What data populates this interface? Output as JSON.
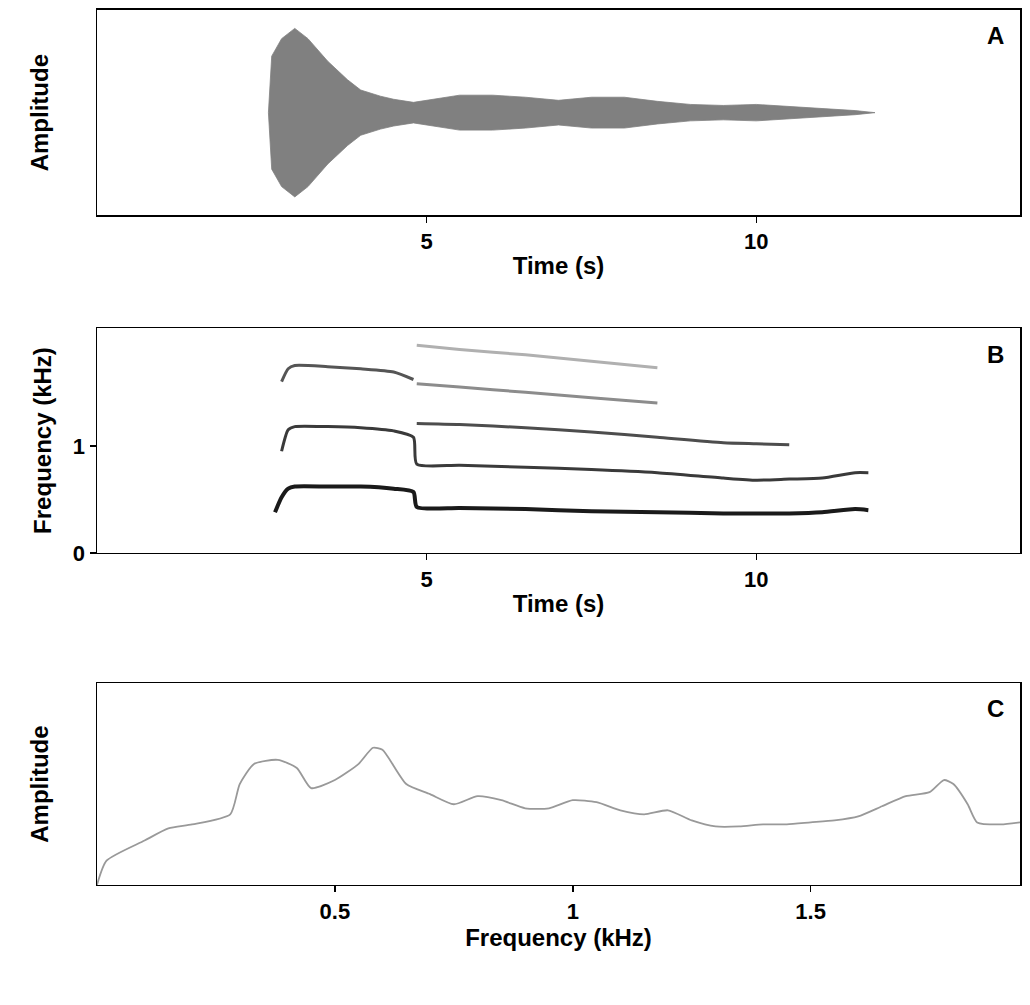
{
  "chart_data": [
    {
      "type": "area",
      "x_label": "Time (s)",
      "y_label": "Amplitude",
      "annotations": [
        "A"
      ],
      "color": "#808080",
      "x": [
        2.6,
        2.65,
        2.8,
        3.0,
        3.2,
        3.5,
        3.8,
        4.0,
        4.3,
        4.5,
        4.8,
        5.0,
        5.5,
        6.0,
        6.5,
        7.0,
        7.5,
        8.0,
        8.5,
        9.0,
        9.5,
        10.0,
        10.5,
        11.0,
        11.5,
        11.8
      ],
      "series": [
        {
          "values": [
            0,
            0.55,
            0.72,
            0.82,
            0.72,
            0.5,
            0.32,
            0.22,
            0.16,
            0.13,
            0.1,
            0.12,
            0.17,
            0.17,
            0.15,
            0.12,
            0.15,
            0.15,
            0.11,
            0.08,
            0.07,
            0.08,
            0.06,
            0.04,
            0.02,
            0
          ]
        },
        {
          "values": [
            0,
            -0.55,
            -0.72,
            -0.82,
            -0.72,
            -0.5,
            -0.32,
            -0.22,
            -0.16,
            -0.13,
            -0.1,
            -0.12,
            -0.17,
            -0.17,
            -0.15,
            -0.12,
            -0.15,
            -0.15,
            -0.11,
            -0.08,
            -0.07,
            -0.08,
            -0.06,
            -0.04,
            -0.02,
            0
          ]
        }
      ],
      "xlim": [
        0,
        14
      ],
      "xticks": [
        5,
        10
      ],
      "ylim": [
        -1,
        1
      ],
      "tick_labels": "x",
      "grid": false
    },
    {
      "type": "line",
      "x_label": "Time (s)",
      "y_label": "Frequency (kHz)",
      "annotations": [
        "B"
      ],
      "x": [
        2.7,
        2.8,
        2.9,
        3.0,
        3.5,
        4.0,
        4.5,
        4.8,
        4.85,
        5.5,
        6.5,
        7.5,
        8.5,
        9.5,
        10.0,
        10.5,
        11.0,
        11.5,
        11.7
      ],
      "series": [
        {
          "color": "#1a1a1a",
          "values": [
            0.38,
            0.52,
            0.6,
            0.62,
            0.62,
            0.62,
            0.6,
            0.57,
            0.43,
            0.42,
            0.41,
            0.39,
            0.38,
            0.37,
            0.37,
            0.37,
            0.38,
            0.41,
            0.4
          ]
        },
        {
          "color": "#3a3a3a",
          "values": [
            null,
            0.95,
            1.15,
            1.18,
            1.18,
            1.17,
            1.14,
            1.08,
            0.83,
            0.82,
            0.8,
            0.78,
            0.75,
            0.7,
            0.68,
            0.69,
            0.7,
            0.75,
            0.75
          ]
        },
        {
          "color": "#555555",
          "values": [
            null,
            1.6,
            1.72,
            1.75,
            1.74,
            1.72,
            1.69,
            1.62,
            null,
            null,
            null,
            null,
            null,
            null,
            null,
            null,
            null,
            null,
            null
          ]
        },
        {
          "color": "#4d4d4d",
          "values": [
            null,
            null,
            null,
            null,
            null,
            null,
            null,
            null,
            1.21,
            1.2,
            1.17,
            1.13,
            1.08,
            1.03,
            1.02,
            1.01,
            null,
            null,
            null
          ]
        },
        {
          "color": "#8c8c8c",
          "values": [
            null,
            null,
            null,
            null,
            null,
            null,
            null,
            null,
            1.58,
            1.55,
            1.5,
            1.45,
            1.4,
            null,
            null,
            null,
            null,
            null,
            null
          ]
        },
        {
          "color": "#b0b0b0",
          "values": [
            null,
            null,
            null,
            null,
            null,
            null,
            null,
            null,
            1.94,
            1.9,
            1.85,
            1.79,
            1.73,
            null,
            null,
            null,
            null,
            null,
            null
          ]
        }
      ],
      "xlim": [
        0,
        14
      ],
      "xticks": [
        5,
        10
      ],
      "ylim": [
        0,
        2.1
      ],
      "yticks": [
        0,
        1
      ],
      "grid": false
    },
    {
      "type": "line",
      "x_label": "Frequency (kHz)",
      "y_label": "Amplitude",
      "annotations": [
        "C"
      ],
      "color": "#999999",
      "x": [
        0,
        0.02,
        0.1,
        0.15,
        0.2,
        0.28,
        0.3,
        0.33,
        0.38,
        0.42,
        0.45,
        0.5,
        0.55,
        0.58,
        0.6,
        0.65,
        0.7,
        0.75,
        0.8,
        0.85,
        0.9,
        0.95,
        1.0,
        1.05,
        1.1,
        1.15,
        1.2,
        1.25,
        1.3,
        1.35,
        1.4,
        1.45,
        1.5,
        1.55,
        1.6,
        1.65,
        1.7,
        1.75,
        1.78,
        1.8,
        1.83,
        1.85,
        1.9,
        1.94
      ],
      "values": [
        0,
        0.12,
        0.22,
        0.28,
        0.3,
        0.35,
        0.5,
        0.6,
        0.62,
        0.58,
        0.48,
        0.52,
        0.6,
        0.68,
        0.67,
        0.5,
        0.45,
        0.4,
        0.44,
        0.42,
        0.38,
        0.38,
        0.42,
        0.41,
        0.37,
        0.35,
        0.37,
        0.32,
        0.29,
        0.29,
        0.3,
        0.3,
        0.31,
        0.32,
        0.34,
        0.39,
        0.44,
        0.46,
        0.52,
        0.5,
        0.4,
        0.31,
        0.3,
        0.31
      ],
      "xlim": [
        0,
        1.94
      ],
      "xticks": [
        0.5,
        1,
        1.5
      ],
      "ylim": [
        0,
        1
      ],
      "tick_labels": "x",
      "grid": false
    }
  ]
}
